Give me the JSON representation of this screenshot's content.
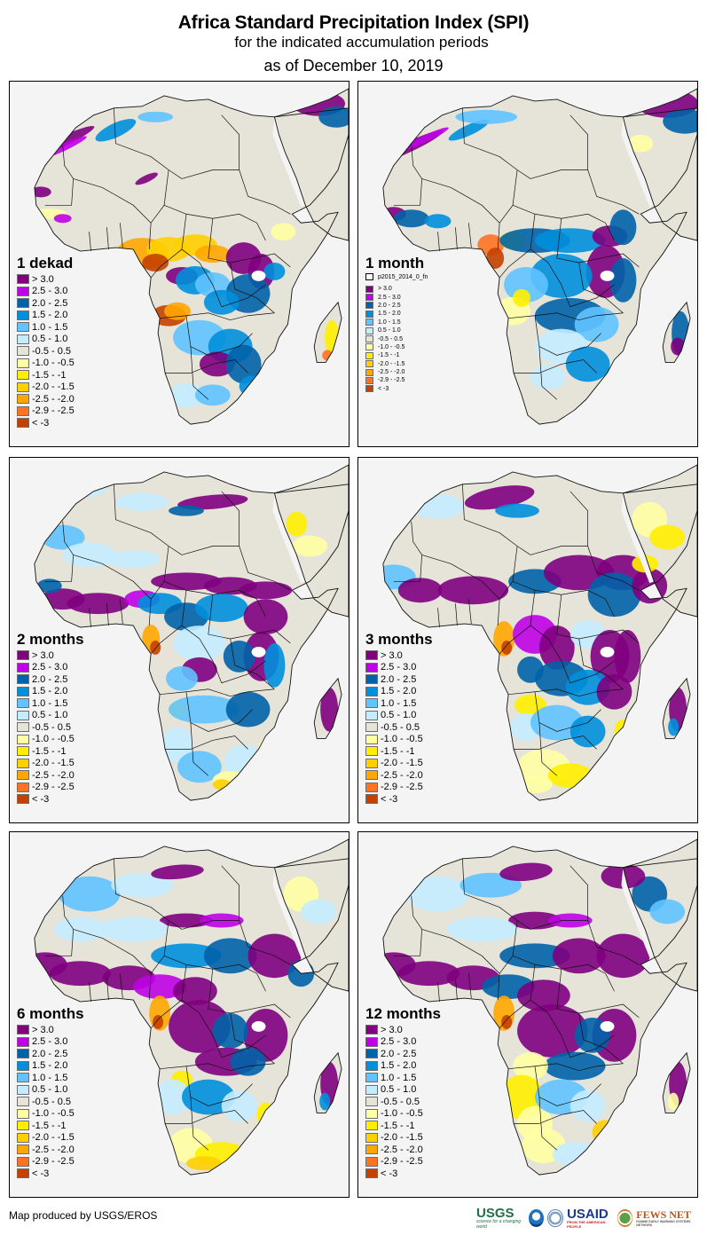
{
  "header": {
    "title": "Africa Standard Precipitation Index (SPI)",
    "subtitle": "for the indicated accumulation periods",
    "date_line": "as of December 10, 2019"
  },
  "legend_classes": [
    {
      "label": "> 3.0",
      "color": "#800080"
    },
    {
      "label": "2.5 - 3.0",
      "color": "#bf00e6"
    },
    {
      "label": "2.0 - 2.5",
      "color": "#0062a8"
    },
    {
      "label": "1.5 - 2.0",
      "color": "#008fdb"
    },
    {
      "label": "1.0 - 1.5",
      "color": "#61c3ff"
    },
    {
      "label": "0.5 - 1.0",
      "color": "#c4ecff"
    },
    {
      "label": "-0.5 - 0.5",
      "color": "#e6e3d9"
    },
    {
      "label": "-1.0 - -0.5",
      "color": "#ffffa3"
    },
    {
      "label": "-1.5 - -1",
      "color": "#ffee00"
    },
    {
      "label": "-2.0 - -1.5",
      "color": "#ffcf00"
    },
    {
      "label": "-2.5 - -2.0",
      "color": "#ffa600"
    },
    {
      "label": "-2.9 - -2.5",
      "color": "#ff7324"
    },
    {
      "label": "< -3",
      "color": "#c44100"
    }
  ],
  "panels": [
    {
      "id": "1-dekad",
      "title": "1 dekad"
    },
    {
      "id": "1-month",
      "title": "1 month",
      "extra_legend_item": "p2015_2014_0_fn"
    },
    {
      "id": "2-months",
      "title": "2 months"
    },
    {
      "id": "3-months",
      "title": "3 months"
    },
    {
      "id": "6-months",
      "title": "6 months"
    },
    {
      "id": "12-months",
      "title": "12 months"
    }
  ],
  "footer": {
    "credit": "Map produced by USGS/EROS"
  },
  "logos": {
    "usgs": "USGS",
    "usgs_tagline": "science for a changing world",
    "noaa": "NOAA",
    "usaid": "USAID",
    "usaid_tagline": "FROM THE AMERICAN PEOPLE",
    "fews": "FEWS NET",
    "fews_tagline": "FAMINE EARLY WARNING SYSTEMS NETWORK"
  },
  "colors": {
    "land_neutral": "#e6e3d9",
    "water_background": "#f4f4f4",
    "border": "#000000"
  }
}
